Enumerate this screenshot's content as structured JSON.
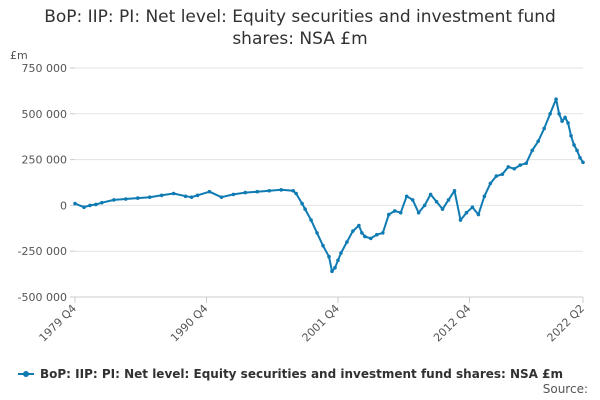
{
  "chart_data": {
    "type": "line",
    "title": "BoP: IIP: PI: Net level: Equity securities and investment fund shares: NSA £m",
    "title_lines": [
      "BoP: IIP: PI: Net level: Equity securities and investment fund",
      "shares: NSA £m"
    ],
    "unit_label": "£m",
    "xlabel": "",
    "ylabel": "£m",
    "ylim": [
      -500000,
      750000
    ],
    "y_ticks": [
      -500000,
      -250000,
      0,
      250000,
      500000,
      750000
    ],
    "y_tick_labels": [
      "-500 000",
      "-250 000",
      "0",
      "250 000",
      "500 000",
      "750 000"
    ],
    "x_ticks": [
      1979.75,
      1990.75,
      2001.75,
      2012.75,
      2022.25
    ],
    "x_tick_labels": [
      "1979 Q4",
      "1990 Q4",
      "2001 Q4",
      "2012 Q4",
      "2022 Q2"
    ],
    "xlim": [
      1979.75,
      2022.25
    ],
    "grid": true,
    "legend_position": "bottom",
    "series": [
      {
        "name": "BoP: IIP: PI: Net level: Equity securities and investment fund shares: NSA £m",
        "color": "#0f7bb3",
        "x": [
          1979.75,
          1980.5,
          1981.0,
          1981.5,
          1982.0,
          1983.0,
          1984.0,
          1985.0,
          1986.0,
          1987.0,
          1988.0,
          1989.0,
          1989.5,
          1990.0,
          1991.0,
          1992.0,
          1993.0,
          1994.0,
          1995.0,
          1996.0,
          1997.0,
          1998.0,
          1998.25,
          1998.75,
          1999.0,
          1999.5,
          2000.0,
          2000.5,
          2001.0,
          2001.25,
          2001.5,
          2001.75,
          2002.0,
          2002.5,
          2003.0,
          2003.5,
          2003.75,
          2004.0,
          2004.5,
          2005.0,
          2005.5,
          2006.0,
          2006.5,
          2007.0,
          2007.5,
          2008.0,
          2008.5,
          2009.0,
          2009.5,
          2010.0,
          2010.5,
          2011.0,
          2011.5,
          2012.0,
          2012.5,
          2013.0,
          2013.5,
          2014.0,
          2014.5,
          2015.0,
          2015.5,
          2016.0,
          2016.5,
          2017.0,
          2017.5,
          2018.0,
          2018.5,
          2019.0,
          2019.5,
          2020.0,
          2020.25,
          2020.5,
          2020.75,
          2021.0,
          2021.25,
          2021.5,
          2021.75,
          2022.0,
          2022.25
        ],
        "values": [
          10000,
          -10000,
          0,
          5000,
          15000,
          30000,
          35000,
          40000,
          45000,
          55000,
          65000,
          50000,
          45000,
          55000,
          75000,
          45000,
          60000,
          70000,
          75000,
          80000,
          85000,
          80000,
          65000,
          10000,
          -20000,
          -80000,
          -150000,
          -220000,
          -280000,
          -360000,
          -340000,
          -300000,
          -260000,
          -200000,
          -140000,
          -110000,
          -150000,
          -170000,
          -180000,
          -160000,
          -150000,
          -50000,
          -30000,
          -40000,
          50000,
          30000,
          -40000,
          0,
          60000,
          20000,
          -20000,
          30000,
          80000,
          -80000,
          -40000,
          -10000,
          -50000,
          50000,
          120000,
          160000,
          170000,
          210000,
          200000,
          220000,
          230000,
          300000,
          350000,
          420000,
          500000,
          580000,
          500000,
          460000,
          480000,
          450000,
          380000,
          330000,
          300000,
          260000,
          235000
        ]
      }
    ]
  },
  "legend": {
    "label": "BoP: IIP: PI: Net level: Equity securities and investment fund shares: NSA £m"
  },
  "source_label": "Source:"
}
